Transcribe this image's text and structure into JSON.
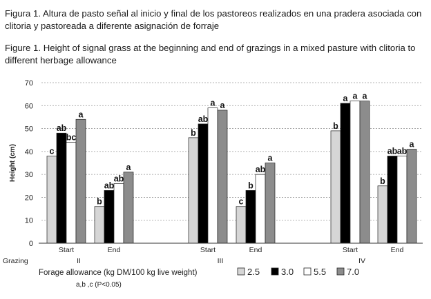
{
  "caption_es": "Figura 1. Altura de pasto señal al inicio y final de los pastoreos realizados en una pradera asociada con clitoria y pastoreada a diferente asignación de forraje",
  "caption_en": "Figure 1. Height of signal grass at the beginning and end of grazings in a mixed pasture with clitoria to different herbage allowance",
  "chart_data": {
    "type": "bar",
    "title": "",
    "ylabel": "Height (cm)",
    "ylim": [
      0,
      70
    ],
    "yticks": [
      0,
      10,
      20,
      30,
      40,
      50,
      60,
      70
    ],
    "grid": true,
    "grazing_label": "Grazing",
    "groups": [
      {
        "grazing": "II",
        "categories": [
          {
            "label": "Start",
            "values": [
              38,
              48,
              44,
              54
            ],
            "letters": [
              "c",
              "ab",
              "bc",
              "a"
            ]
          },
          {
            "label": "End",
            "values": [
              16,
              23,
              26,
              31
            ],
            "letters": [
              "b",
              "ab",
              "ab",
              "a"
            ]
          }
        ]
      },
      {
        "grazing": "III",
        "categories": [
          {
            "label": "Start",
            "values": [
              46,
              52,
              59,
              58
            ],
            "letters": [
              "b",
              "ab",
              "a",
              "a"
            ]
          },
          {
            "label": "End",
            "values": [
              16,
              23,
              30,
              35
            ],
            "letters": [
              "c",
              "b",
              "ab",
              "a"
            ]
          }
        ]
      },
      {
        "grazing": "IV",
        "categories": [
          {
            "label": "Start",
            "values": [
              49,
              61,
              62,
              62
            ],
            "letters": [
              "b",
              "a",
              "a",
              "a"
            ]
          },
          {
            "label": "End",
            "values": [
              25,
              38,
              38,
              41
            ],
            "letters": [
              "b",
              "ab",
              "ab",
              "a"
            ]
          }
        ]
      }
    ],
    "legend_title": "Forage allowance (kg DM/100 kg live weight)",
    "series": [
      {
        "name": "2.5",
        "color": "#d6d6d6"
      },
      {
        "name": "3.0",
        "color": "#000000"
      },
      {
        "name": "5.5",
        "color": "#ffffff"
      },
      {
        "name": "7.0",
        "color": "#8c8c8c"
      }
    ],
    "footnote": "a,b ,c (P<0.05)"
  }
}
